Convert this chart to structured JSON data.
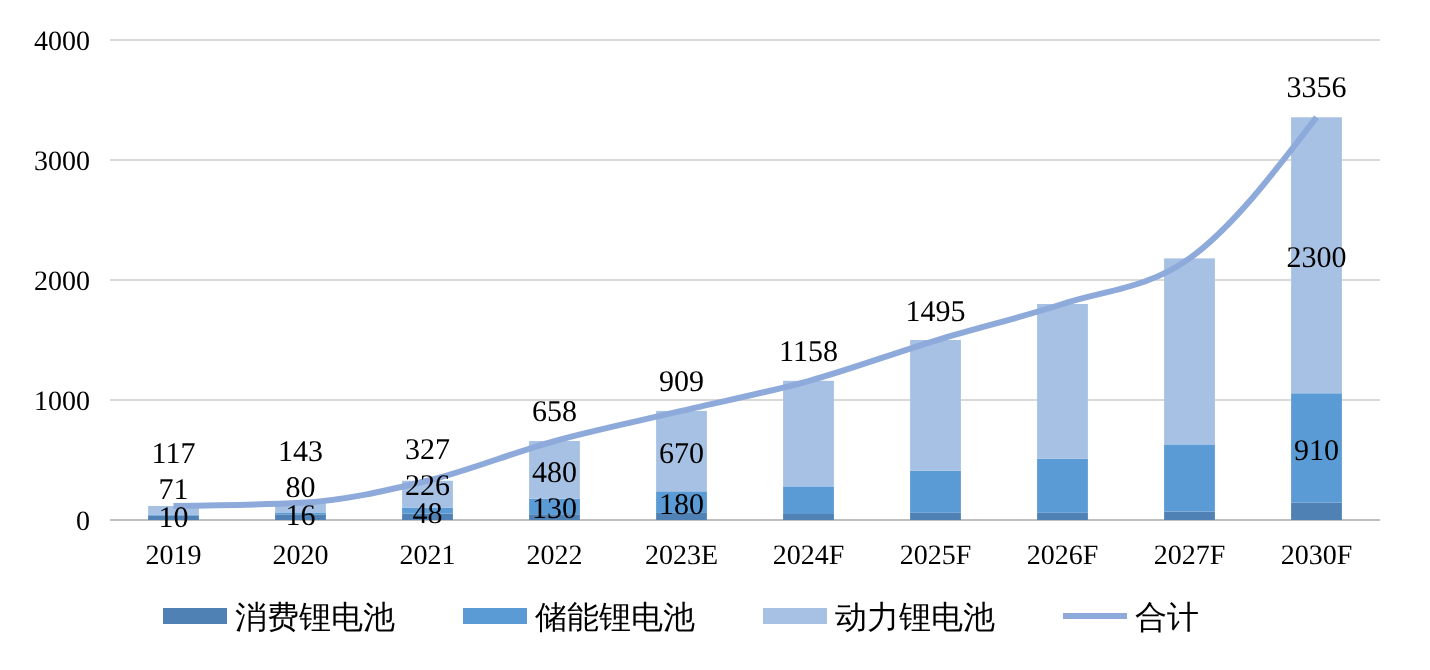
{
  "chart_data": {
    "type": "bar",
    "stacked": true,
    "categories": [
      "2019",
      "2020",
      "2021",
      "2022",
      "2023E",
      "2024F",
      "2025F",
      "2026F",
      "2027F",
      "2030F"
    ],
    "series": [
      {
        "name": "消费锂电池",
        "color": "#4f81b4",
        "values": [
          36,
          47,
          53,
          48,
          59,
          50,
          60,
          60,
          70,
          146
        ]
      },
      {
        "name": "储能锂电池",
        "color": "#5b9bd5",
        "values": [
          10,
          16,
          48,
          130,
          180,
          230,
          350,
          450,
          560,
          910
        ],
        "value_labels": [
          "10",
          "16",
          "48",
          "130",
          "180",
          null,
          null,
          null,
          null,
          "910"
        ]
      },
      {
        "name": "动力锂电池",
        "color": "#a6c1e3",
        "values": [
          71,
          80,
          226,
          480,
          670,
          880,
          1090,
          1290,
          1550,
          2300
        ],
        "value_labels": [
          "71",
          "80",
          "226",
          "480",
          "670",
          null,
          null,
          null,
          null,
          "2300"
        ]
      },
      {
        "name": "合计",
        "type": "line",
        "color": "#8eaadb",
        "values": [
          117,
          143,
          327,
          658,
          909,
          1158,
          1495,
          1800,
          2180,
          3356
        ],
        "value_labels": [
          "117",
          "143",
          "327",
          "658",
          "909",
          "1158",
          "1495",
          null,
          null,
          "3356"
        ]
      }
    ],
    "ylim": [
      0,
      4000
    ],
    "yticks": [
      0,
      1000,
      2000,
      3000,
      4000
    ],
    "grid": "y",
    "legend": "bottom",
    "marker": "none"
  }
}
